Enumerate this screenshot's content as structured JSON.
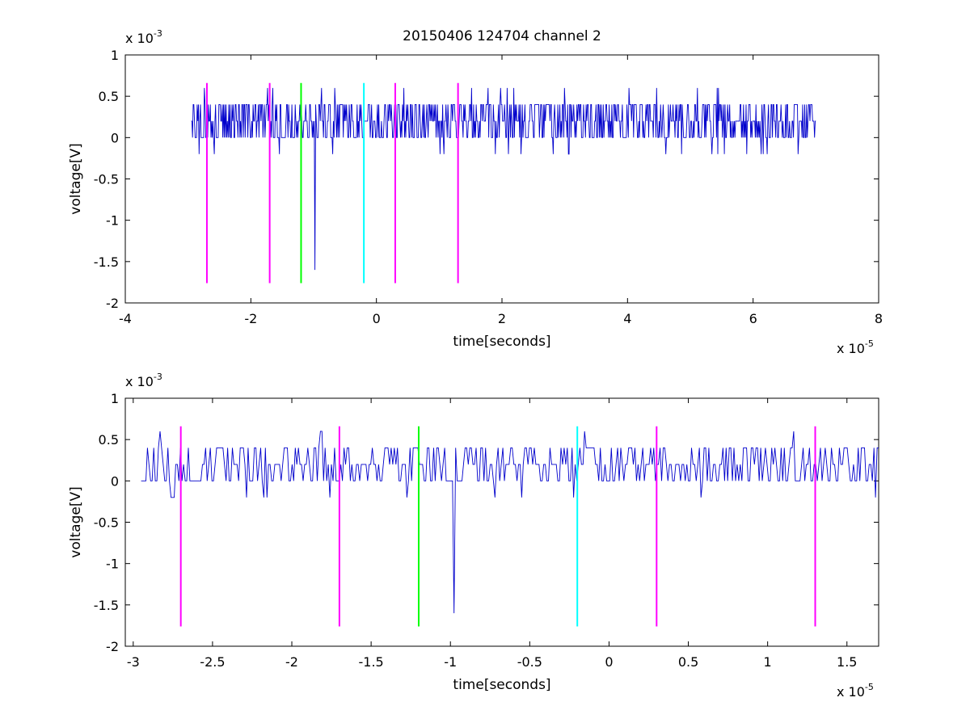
{
  "chart_data": [
    {
      "type": "line",
      "title": "20150406 124704 channel 2",
      "xlabel": "time[seconds]",
      "ylabel": "voltage[V]",
      "x_multiplier": {
        "base": "x 10",
        "exp": "-5"
      },
      "y_multiplier": {
        "base": "x 10",
        "exp": "-3"
      },
      "xlim": [
        -4,
        8
      ],
      "ylim": [
        -2,
        1
      ],
      "x_ticks": [
        -4,
        -2,
        0,
        2,
        4,
        6,
        8
      ],
      "x_tick_labels": [
        "-4",
        "-2",
        "0",
        "2",
        "4",
        "6",
        "8"
      ],
      "y_ticks": [
        -2,
        -1.5,
        -1,
        -0.5,
        0,
        0.5,
        1
      ],
      "y_tick_labels": [
        "-2",
        "-1.5",
        "-1",
        "-0.5",
        "0",
        "0.5",
        "1"
      ],
      "grid": false,
      "series": [
        {
          "color": "#0000cc",
          "x_range": [
            -2.95,
            7.0
          ],
          "baseline": 0.2,
          "levels": [
            0,
            0.2,
            0.4
          ],
          "spike": {
            "x": -0.98,
            "y": -1.6
          }
        }
      ],
      "markers": [
        {
          "x": -2.7,
          "color": "#ff00ff",
          "y_range": [
            -1.76,
            0.66
          ]
        },
        {
          "x": -1.7,
          "color": "#ff00ff",
          "y_range": [
            -1.76,
            0.66
          ]
        },
        {
          "x": -1.2,
          "color": "#00ff00",
          "y_range": [
            -1.76,
            0.66
          ]
        },
        {
          "x": -0.2,
          "color": "#00ffff",
          "y_range": [
            -1.76,
            0.66
          ]
        },
        {
          "x": 0.3,
          "color": "#ff00ff",
          "y_range": [
            -1.76,
            0.66
          ]
        },
        {
          "x": 1.3,
          "color": "#ff00ff",
          "y_range": [
            -1.76,
            0.66
          ]
        }
      ]
    },
    {
      "type": "line",
      "title": "",
      "xlabel": "time[seconds]",
      "ylabel": "voltage[V]",
      "x_multiplier": {
        "base": "x 10",
        "exp": "-5"
      },
      "y_multiplier": {
        "base": "x 10",
        "exp": "-3"
      },
      "xlim": [
        -3.05,
        1.7
      ],
      "ylim": [
        -2,
        1
      ],
      "x_ticks": [
        -3,
        -2.5,
        -2,
        -1.5,
        -1,
        -0.5,
        0,
        0.5,
        1,
        1.5
      ],
      "x_tick_labels": [
        "-3",
        "-2.5",
        "-2",
        "-1.5",
        "-1",
        "-0.5",
        "0",
        "0.5",
        "1",
        "1.5"
      ],
      "y_ticks": [
        -2,
        -1.5,
        -1,
        -0.5,
        0,
        0.5,
        1
      ],
      "y_tick_labels": [
        "-2",
        "-1.5",
        "-1",
        "-0.5",
        "0",
        "0.5",
        "1"
      ],
      "grid": false,
      "series": [
        {
          "color": "#0000cc",
          "x_range": [
            -2.95,
            1.7
          ],
          "baseline": 0.2,
          "levels": [
            0,
            0.2,
            0.4
          ],
          "spike": {
            "x": -0.98,
            "y": -1.6
          }
        }
      ],
      "markers": [
        {
          "x": -2.7,
          "color": "#ff00ff",
          "y_range": [
            -1.76,
            0.66
          ]
        },
        {
          "x": -1.7,
          "color": "#ff00ff",
          "y_range": [
            -1.76,
            0.66
          ]
        },
        {
          "x": -1.2,
          "color": "#00ff00",
          "y_range": [
            -1.76,
            0.66
          ]
        },
        {
          "x": -0.2,
          "color": "#00ffff",
          "y_range": [
            -1.76,
            0.66
          ]
        },
        {
          "x": 0.3,
          "color": "#ff00ff",
          "y_range": [
            -1.76,
            0.66
          ]
        },
        {
          "x": 1.3,
          "color": "#ff00ff",
          "y_range": [
            -1.76,
            0.66
          ]
        }
      ]
    }
  ]
}
